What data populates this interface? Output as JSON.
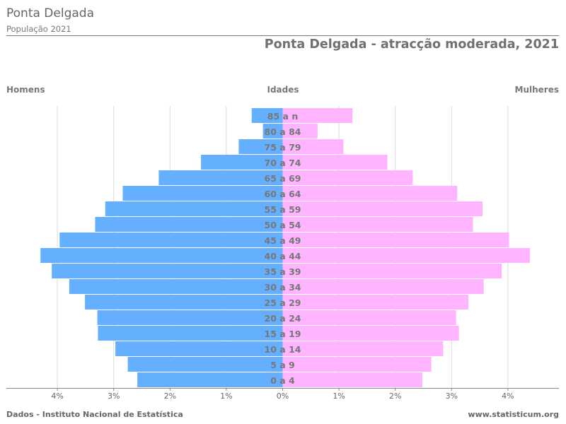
{
  "header": {
    "title": "Ponta Delgada",
    "subtitle": "População 2021"
  },
  "chart_title": "Ponta Delgada - atracção moderada, 2021",
  "labels": {
    "men": "Homens",
    "ages": "Idades",
    "women": "Mulheres"
  },
  "footer": {
    "source": "Dados - Instituto Nacional de Estatística",
    "site": "www.statisticum.org"
  },
  "colors": {
    "men": "#64b0ff",
    "women": "#ffb4ff",
    "grid": "#dddddd",
    "axis": "#888888",
    "age_label": "#777777"
  },
  "chart_data": {
    "type": "bar",
    "orientation": "horizontal-population-pyramid",
    "categories": [
      "0 a 4",
      "5 a 9",
      "10 a 14",
      "15 a 19",
      "20 a 24",
      "25 a 29",
      "30 a 34",
      "35 a 39",
      "40 a 44",
      "45 a 49",
      "50 a 54",
      "55 a 59",
      "60 a 64",
      "65 a 69",
      "70 a 74",
      "75 a 79",
      "80 a 84",
      "85 a n"
    ],
    "series": [
      {
        "name": "Homens",
        "values": [
          2.58,
          2.75,
          2.97,
          3.28,
          3.29,
          3.51,
          3.79,
          4.1,
          4.3,
          3.96,
          3.33,
          3.15,
          2.84,
          2.2,
          1.45,
          0.78,
          0.35,
          0.55
        ]
      },
      {
        "name": "Mulheres",
        "values": [
          2.48,
          2.64,
          2.85,
          3.13,
          3.08,
          3.3,
          3.57,
          3.89,
          4.39,
          4.02,
          3.38,
          3.55,
          3.1,
          2.31,
          1.86,
          1.08,
          0.62,
          1.24
        ]
      }
    ],
    "xlim": [
      -4.8,
      4.8
    ],
    "xticks": [
      -4,
      -3,
      -2,
      -1,
      0,
      1,
      2,
      3,
      4
    ],
    "xtick_labels": [
      "4%",
      "3%",
      "2%",
      "1%",
      "0%",
      "1%",
      "2%",
      "3%",
      "4%"
    ],
    "grid": true
  }
}
